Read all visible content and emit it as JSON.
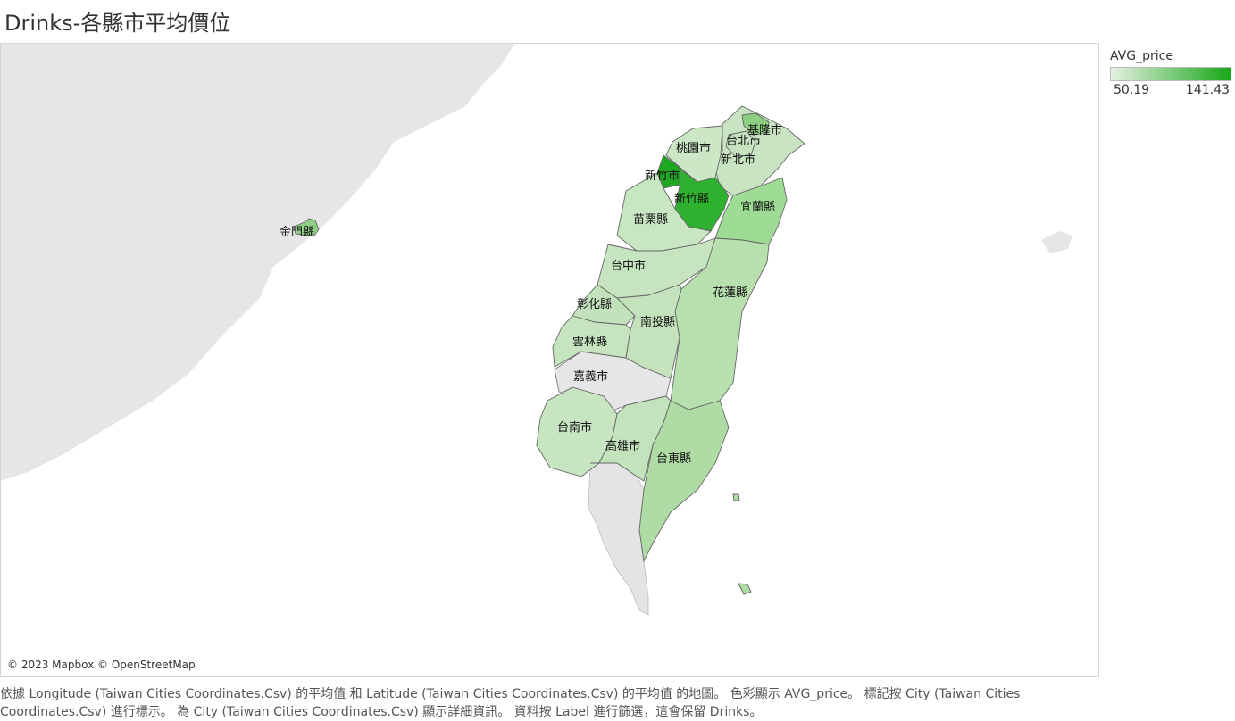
{
  "title": "Drinks-各縣市平均價位",
  "legend": {
    "field": "AVG_price",
    "min_label": "50.19",
    "max_label": "141.43",
    "min_color": "#e4f0e1",
    "max_color": "#18a718"
  },
  "map": {
    "attribution": "© 2023 Mapbox © OpenStreetMap",
    "land_color": "#e6e6e6",
    "water_color": "#ffffff",
    "region_labels": {
      "keelung": "基隆市",
      "taipei": "台北市",
      "taoyuan": "桃園市",
      "new_taipei": "新北市",
      "hsinchu_city": "新竹市",
      "hsinchu_county": "新竹縣",
      "yilan": "宜蘭縣",
      "miaoli": "苗栗縣",
      "taichung": "台中市",
      "hualien": "花蓮縣",
      "changhua": "彰化縣",
      "nantou": "南投縣",
      "yunlin": "雲林縣",
      "chiayi_city": "嘉義市",
      "tainan": "台南市",
      "kaohsiung": "高雄市",
      "taitung": "台東縣",
      "kinmen": "金門縣"
    }
  },
  "caption": "依據 Longitude (Taiwan Cities Coordinates.Csv) 的平均值 和 Latitude (Taiwan Cities Coordinates.Csv) 的平均值 的地圖。 色彩顯示 AVG_price。 標記按 City (Taiwan Cities Coordinates.Csv) 進行標示。 為 City (Taiwan Cities Coordinates.Csv) 顯示詳細資訊。 資料按 Label 進行篩選，這會保留 Drinks。"
}
